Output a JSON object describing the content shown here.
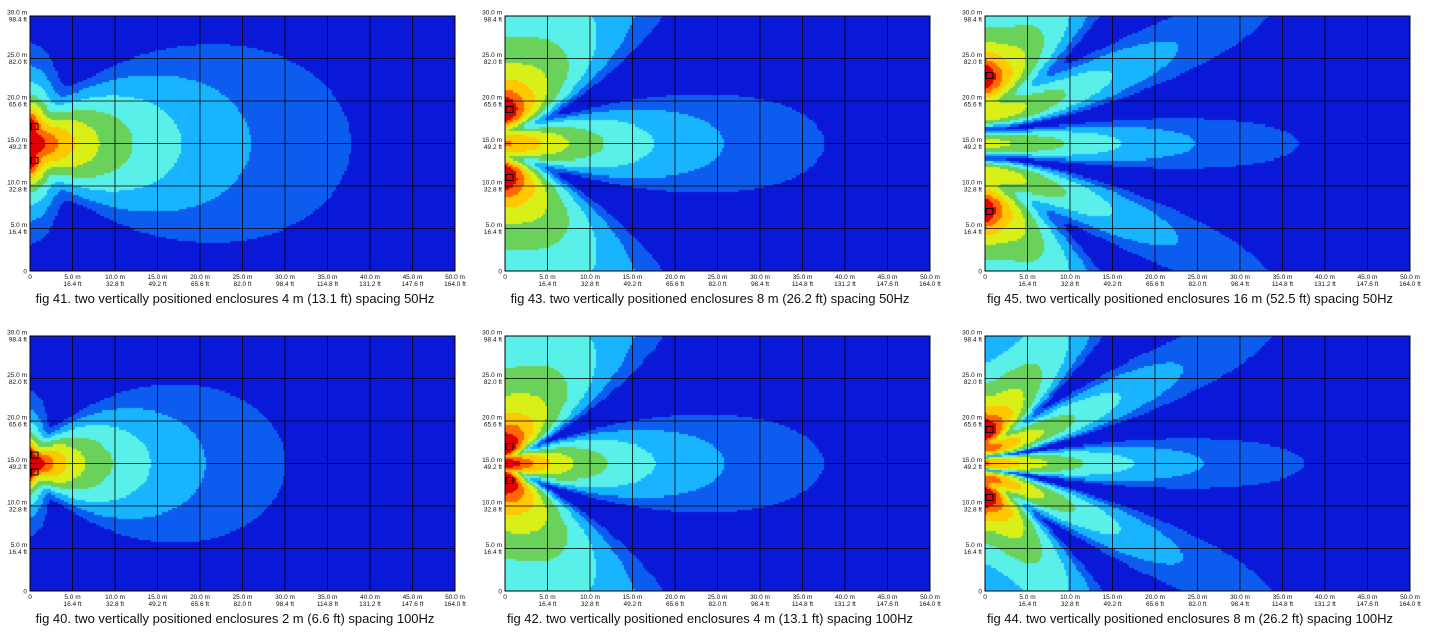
{
  "axes": {
    "y_ticks": [
      {
        "m": "30.0 m",
        "ft": "98.4 ft"
      },
      {
        "m": "25.0 m",
        "ft": "82.0 ft"
      },
      {
        "m": "20.0 m",
        "ft": "65.6 ft"
      },
      {
        "m": "15.0 m",
        "ft": "49.2 ft"
      },
      {
        "m": "10.0 m",
        "ft": "32.8 ft"
      },
      {
        "m": "5.0 m",
        "ft": "16.4 ft"
      },
      {
        "m": "0",
        "ft": ""
      }
    ],
    "x_ticks": [
      {
        "m": "0",
        "ft": ""
      },
      {
        "m": "5.0 m",
        "ft": "16.4 ft"
      },
      {
        "m": "10.0 m",
        "ft": "32.8 ft"
      },
      {
        "m": "15.0 m",
        "ft": "49.2 ft"
      },
      {
        "m": "20.0 m",
        "ft": "65.6 ft"
      },
      {
        "m": "25.0 m",
        "ft": "82.0 ft"
      },
      {
        "m": "30.0 m",
        "ft": "98.4 ft"
      },
      {
        "m": "35.0 m",
        "ft": "114.8 ft"
      },
      {
        "m": "40.0 m",
        "ft": "131.2 ft"
      },
      {
        "m": "45.0 m",
        "ft": "147.6 ft"
      },
      {
        "m": "50.0 m",
        "ft": "164.0 ft"
      }
    ]
  },
  "colors": {
    "background": "#0a18d8",
    "grid": "#000000",
    "scale": [
      "#0a18d8",
      "#0c5cf0",
      "#18b4ff",
      "#58f0e8",
      "#6ad25a",
      "#d8f018",
      "#ffc800",
      "#ff6a00",
      "#e00000"
    ]
  },
  "panels": [
    {
      "id": "fig41",
      "caption": "fig 41. two vertically positioned enclosures 4 m (13.1 ft) spacing 50Hz",
      "spacing_m": 4,
      "frequency_hz": 50,
      "sources_y_m": [
        17,
        13
      ]
    },
    {
      "id": "fig43",
      "caption": "fig 43. two vertically positioned enclosures 8 m (26.2 ft) spacing 50Hz",
      "spacing_m": 8,
      "frequency_hz": 50,
      "sources_y_m": [
        19,
        11
      ]
    },
    {
      "id": "fig45",
      "caption": "fig 45. two vertically positioned enclosures 16 m (52.5 ft) spacing 50Hz",
      "spacing_m": 16,
      "frequency_hz": 50,
      "sources_y_m": [
        23,
        7
      ]
    },
    {
      "id": "fig40",
      "caption": "fig 40. two vertically positioned enclosures 2 m (6.6 ft) spacing 100Hz",
      "spacing_m": 2,
      "frequency_hz": 100,
      "sources_y_m": [
        16,
        14
      ]
    },
    {
      "id": "fig42",
      "caption": "fig 42. two vertically positioned enclosures 4 m (13.1 ft) spacing 100Hz",
      "spacing_m": 4,
      "frequency_hz": 100,
      "sources_y_m": [
        17,
        13
      ]
    },
    {
      "id": "fig44",
      "caption": "fig 44. two vertically positioned enclosures 8 m (26.2 ft) spacing 100Hz",
      "spacing_m": 8,
      "frequency_hz": 100,
      "sources_y_m": [
        19,
        11
      ]
    }
  ]
}
